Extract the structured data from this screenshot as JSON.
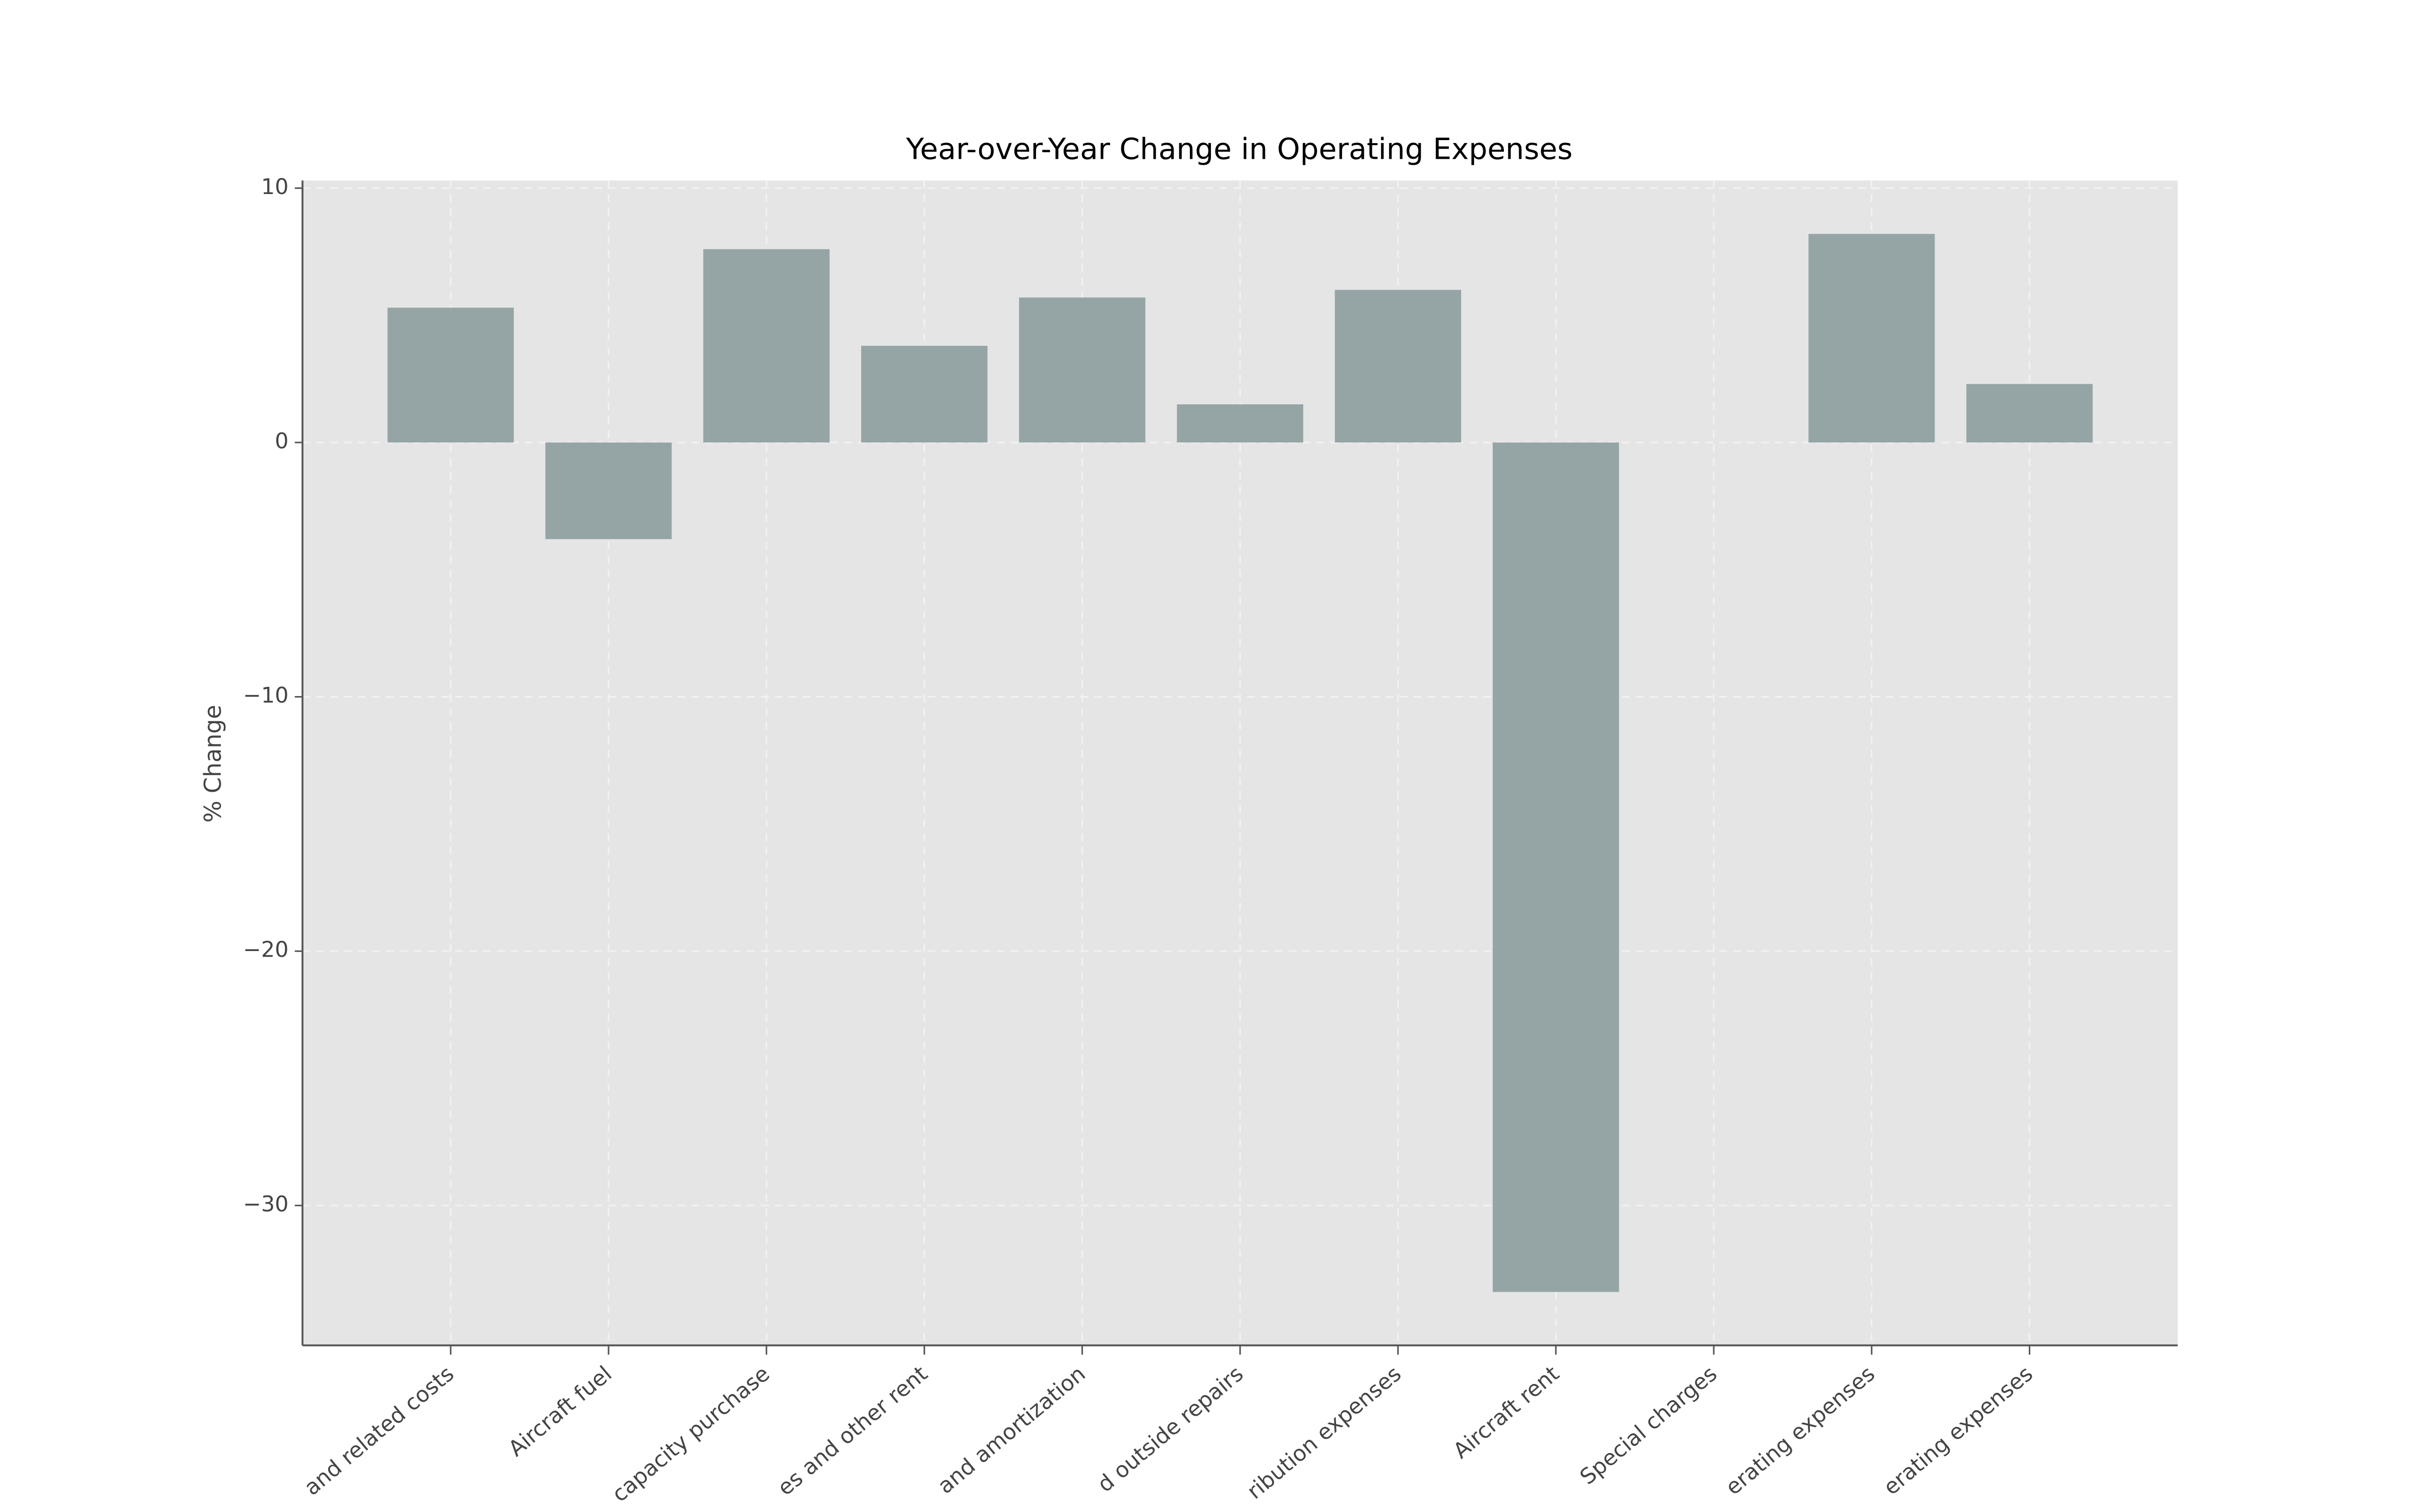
{
  "chart_data": {
    "type": "bar",
    "title": "Year-over-Year Change in Operating Expenses",
    "y_label": "% Change",
    "categories": [
      "and related costs",
      "Aircraft fuel",
      "capacity purchase",
      "es and other rent",
      "and amortization",
      "d outside repairs",
      "ribution expenses",
      "Aircraft rent",
      "Special charges",
      "erating expenses",
      "erating expenses"
    ],
    "values": [
      5.3,
      -3.8,
      7.6,
      3.8,
      5.7,
      1.5,
      6.0,
      -33.4,
      null,
      8.2,
      2.3
    ],
    "color": "#95a5a5",
    "ylim": [
      -35.5,
      10.3
    ],
    "yticks": [
      {
        "value": -30,
        "label": "−30"
      },
      {
        "value": -20,
        "label": "−20"
      },
      {
        "value": -10,
        "label": "−10"
      },
      0,
      10
    ],
    "grid": true
  }
}
